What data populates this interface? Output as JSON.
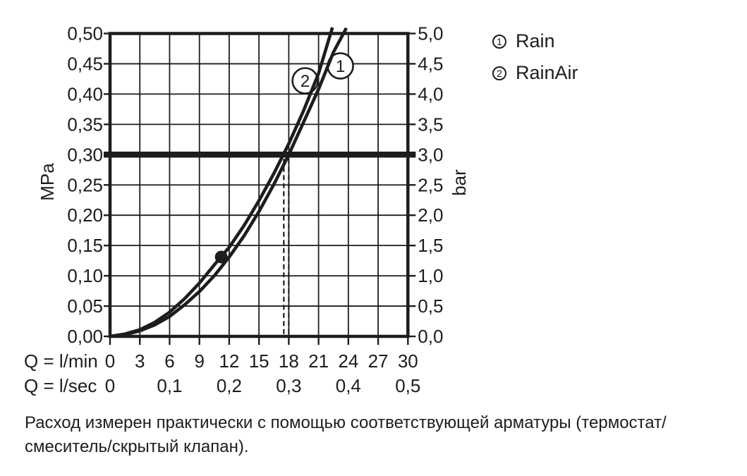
{
  "colors": {
    "ink": "#1d1d1b",
    "background": "#ffffff",
    "circle_fill": "#ffffff"
  },
  "chart_data": {
    "type": "line",
    "title": "",
    "x_axis": {
      "unit_row_1": "Q = l/min",
      "unit_row_2": "Q = l/sec",
      "range": [
        0,
        30
      ],
      "ticks": [
        {
          "lmin": 0,
          "label": "0"
        },
        {
          "lmin": 3,
          "label": "3"
        },
        {
          "lmin": 6,
          "label": "6"
        },
        {
          "lmin": 9,
          "label": "9"
        },
        {
          "lmin": 12,
          "label": "12"
        },
        {
          "lmin": 15,
          "label": "15"
        },
        {
          "lmin": 18,
          "label": "18"
        },
        {
          "lmin": 21,
          "label": "21"
        },
        {
          "lmin": 24,
          "label": "24"
        },
        {
          "lmin": 27,
          "label": "27"
        },
        {
          "lmin": 30,
          "label": "30"
        }
      ],
      "lsec_ticks": [
        {
          "lmin": 0,
          "label": "0"
        },
        {
          "lmin": 6,
          "label": "0,1"
        },
        {
          "lmin": 12,
          "label": "0,2"
        },
        {
          "lmin": 18,
          "label": "0,3"
        },
        {
          "lmin": 24,
          "label": "0,4"
        },
        {
          "lmin": 30,
          "label": "0,5"
        }
      ]
    },
    "y_axis": {
      "unit_left": "MPa",
      "unit_right": "bar",
      "range": [
        0,
        0.5
      ],
      "grid": true,
      "ticks": [
        {
          "mpa": 0.5,
          "label_mpa": "0,50",
          "label_bar": "5,0"
        },
        {
          "mpa": 0.45,
          "label_mpa": "0,45",
          "label_bar": "4,5"
        },
        {
          "mpa": 0.4,
          "label_mpa": "0,40",
          "label_bar": "4,0"
        },
        {
          "mpa": 0.35,
          "label_mpa": "0,35",
          "label_bar": "3,5"
        },
        {
          "mpa": 0.3,
          "label_mpa": "0,30",
          "label_bar": "3,0"
        },
        {
          "mpa": 0.25,
          "label_mpa": "0,25",
          "label_bar": "2,5"
        },
        {
          "mpa": 0.2,
          "label_mpa": "0,20",
          "label_bar": "2,0"
        },
        {
          "mpa": 0.15,
          "label_mpa": "0,15",
          "label_bar": "1,5"
        },
        {
          "mpa": 0.1,
          "label_mpa": "0,10",
          "label_bar": "1,0"
        },
        {
          "mpa": 0.05,
          "label_mpa": "0,05",
          "label_bar": "0,5"
        },
        {
          "mpa": 0.0,
          "label_mpa": "0,00",
          "label_bar": "0,0"
        }
      ]
    },
    "series": [
      {
        "id": "1",
        "name": "Rain",
        "points": [
          [
            0,
            0
          ],
          [
            1.5,
            0.003
          ],
          [
            3,
            0.009
          ],
          [
            4.5,
            0.019
          ],
          [
            6,
            0.033
          ],
          [
            7.5,
            0.052
          ],
          [
            9,
            0.074
          ],
          [
            10.5,
            0.1
          ],
          [
            12,
            0.131
          ],
          [
            13.5,
            0.166
          ],
          [
            15,
            0.206
          ],
          [
            16.5,
            0.251
          ],
          [
            18,
            0.3
          ],
          [
            19.5,
            0.354
          ],
          [
            21,
            0.408
          ],
          [
            22.5,
            0.469
          ],
          [
            23.8,
            0.509
          ]
        ]
      },
      {
        "id": "2",
        "name": "RainAir",
        "points": [
          [
            0,
            0
          ],
          [
            1.5,
            0.004
          ],
          [
            3,
            0.011
          ],
          [
            4.5,
            0.023
          ],
          [
            6,
            0.04
          ],
          [
            7.5,
            0.062
          ],
          [
            9,
            0.088
          ],
          [
            10.5,
            0.118
          ],
          [
            12,
            0.147
          ],
          [
            13.5,
            0.183
          ],
          [
            15,
            0.224
          ],
          [
            16.5,
            0.269
          ],
          [
            18,
            0.318
          ],
          [
            19.5,
            0.373
          ],
          [
            21,
            0.434
          ],
          [
            22.4,
            0.51
          ]
        ]
      }
    ],
    "reference_line": {
      "mpa": 0.3,
      "bar": 3.0
    },
    "flow_markers": [
      {
        "lmin": 17.5
      },
      {
        "lmin": 18.0
      }
    ],
    "operating_point": {
      "lmin": 11.2,
      "mpa": 0.131
    },
    "series_labels": [
      {
        "text": "2",
        "lmin": 19.65,
        "mpa": 0.422
      },
      {
        "text": "1",
        "lmin": 23.2,
        "mpa": 0.4465
      }
    ]
  },
  "legend": {
    "items": [
      {
        "marker": "1",
        "label": "Rain"
      },
      {
        "marker": "2",
        "label": "RainAir"
      }
    ]
  },
  "caption": {
    "lines": [
      "Расход измерен практически с помощью соответствующей арматуры (термостат/",
      "смеситель/скрытый клапан)."
    ]
  }
}
